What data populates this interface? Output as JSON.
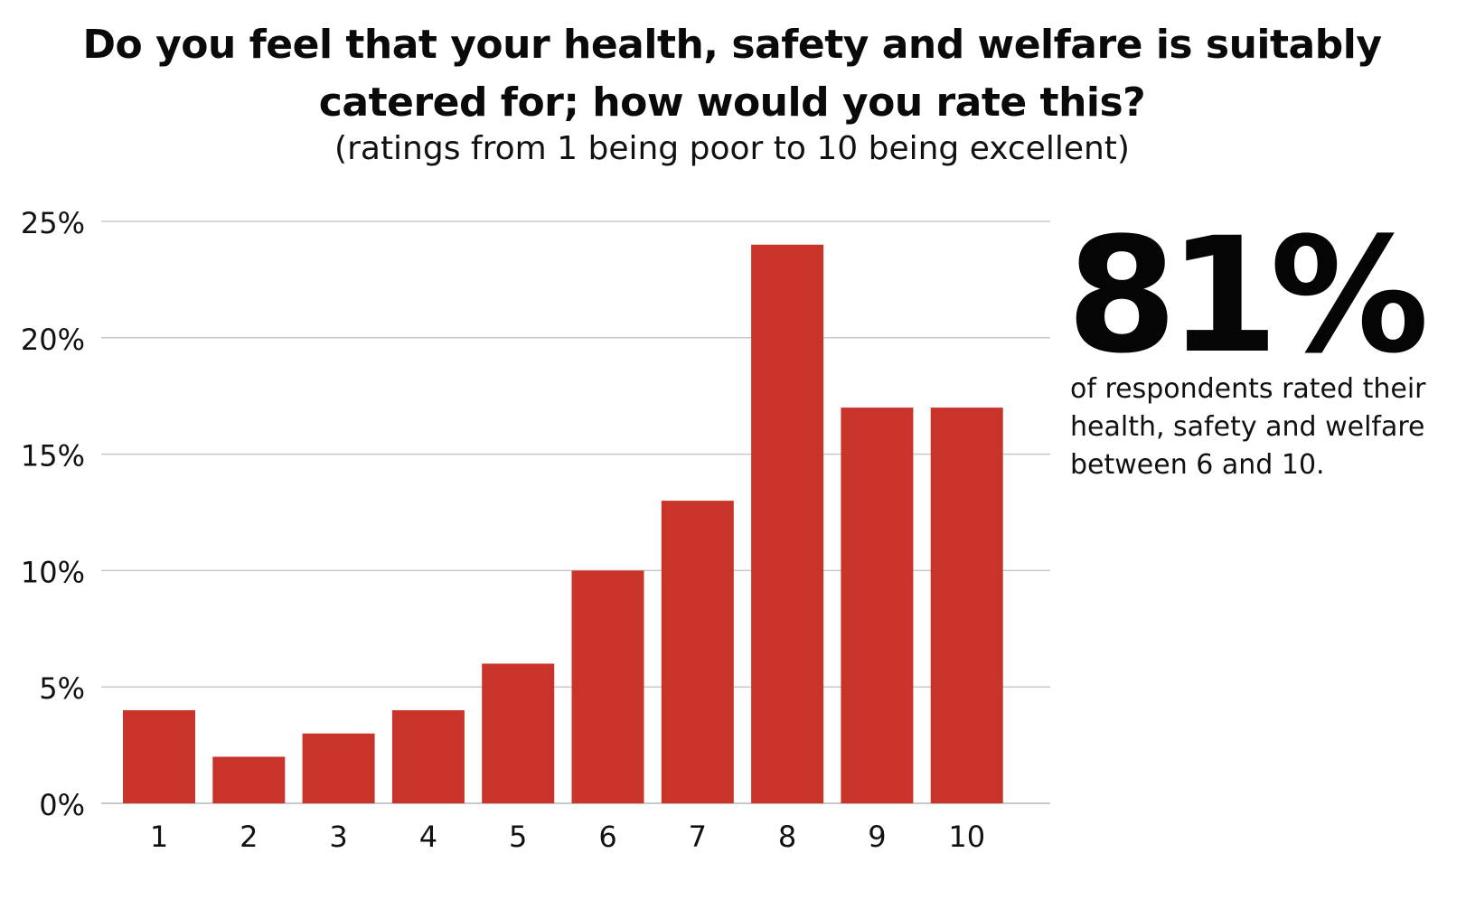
{
  "title": "Do you feel that your health, safety and welfare is suitably catered for; how would you rate this?",
  "subtitle": "(ratings from 1 being poor to 10 being excellent)",
  "stat": {
    "value": "81%",
    "caption": "of respondents rated their health, safety and welfare between 6 and 10."
  },
  "colors": {
    "bar": "#c9342a",
    "grid": "#c8c8c8",
    "text": "#111111"
  },
  "chart_data": {
    "type": "bar",
    "categories": [
      "1",
      "2",
      "3",
      "4",
      "5",
      "6",
      "7",
      "8",
      "9",
      "10"
    ],
    "values": [
      4,
      2,
      3,
      4,
      6,
      10,
      13,
      24,
      17,
      17
    ],
    "yticks": [
      "0%",
      "5%",
      "10%",
      "15%",
      "20%",
      "25%"
    ],
    "ytick_values": [
      0,
      5,
      10,
      15,
      20,
      25
    ],
    "ylim": [
      0,
      25
    ],
    "xlabel": "",
    "ylabel": "",
    "grid": true,
    "legend": false
  }
}
